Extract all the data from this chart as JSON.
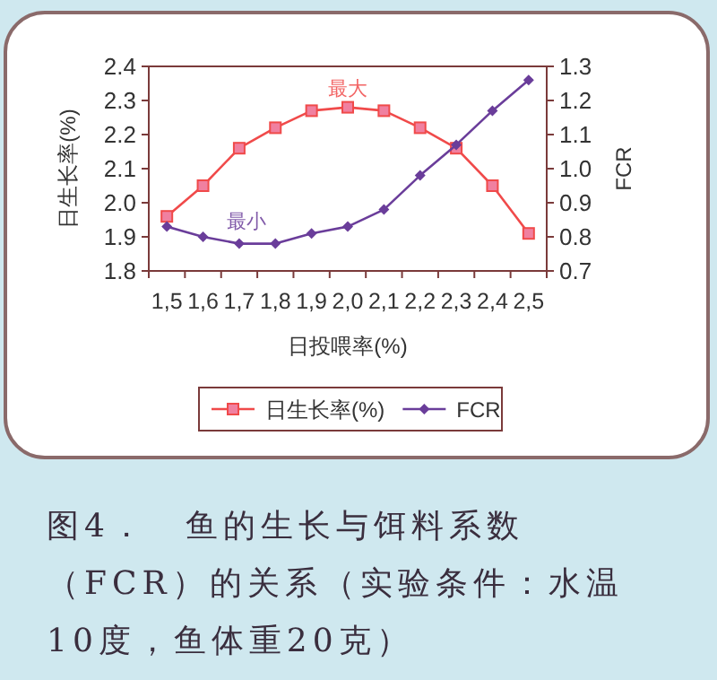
{
  "chart_data": {
    "type": "line",
    "xlabel": "日投喂率(%)",
    "ylabel": "日生长率(%)",
    "y2label": "FCR",
    "categories": [
      "1,5",
      "1,6",
      "1,7",
      "1,8",
      "1,9",
      "2,0",
      "2,1",
      "2,2",
      "2,3",
      "2,4",
      "2,5"
    ],
    "series": [
      {
        "name": "日生长率(%)",
        "color": "#f04a4a",
        "marker": "square",
        "values": [
          1.96,
          2.05,
          2.16,
          2.22,
          2.27,
          2.28,
          2.27,
          2.22,
          2.16,
          2.05,
          1.91
        ]
      },
      {
        "name": "FCR",
        "color": "#6a3d9a",
        "marker": "diamond",
        "axis": "y2",
        "values": [
          0.83,
          0.8,
          0.78,
          0.78,
          0.81,
          0.83,
          0.88,
          0.98,
          1.07,
          1.17,
          1.26
        ]
      }
    ],
    "ylim": [
      1.8,
      2.4
    ],
    "yticks": [
      {
        "value": 1.8,
        "label": "1.8"
      },
      {
        "value": 1.9,
        "label": "1.9"
      },
      {
        "value": 2.0,
        "label": "2.0"
      },
      {
        "value": 2.1,
        "label": "2.1"
      },
      {
        "value": 2.2,
        "label": "2.2"
      },
      {
        "value": 2.3,
        "label": "2.3"
      },
      {
        "value": 2.4,
        "label": "2.4"
      }
    ],
    "y2lim": [
      0.7,
      1.3
    ],
    "y2ticks": [
      {
        "value": 0.7,
        "label": "0.7"
      },
      {
        "value": 0.8,
        "label": "0.8"
      },
      {
        "value": 0.9,
        "label": "0.9"
      },
      {
        "value": 1.0,
        "label": "1.0"
      },
      {
        "value": 1.1,
        "label": "1.1"
      },
      {
        "value": 1.2,
        "label": "1.2"
      },
      {
        "value": 1.3,
        "label": "1.3"
      }
    ],
    "annotations": [
      {
        "text": "最大",
        "x": "2,0",
        "y": 2.28
      },
      "最小",
      "图4．　鱼的生长与饵料系数（FCR）的关系（实验条件：水温10度，鱼体重20克）"
    ],
    "legend": "bottom",
    "grid": false
  }
}
